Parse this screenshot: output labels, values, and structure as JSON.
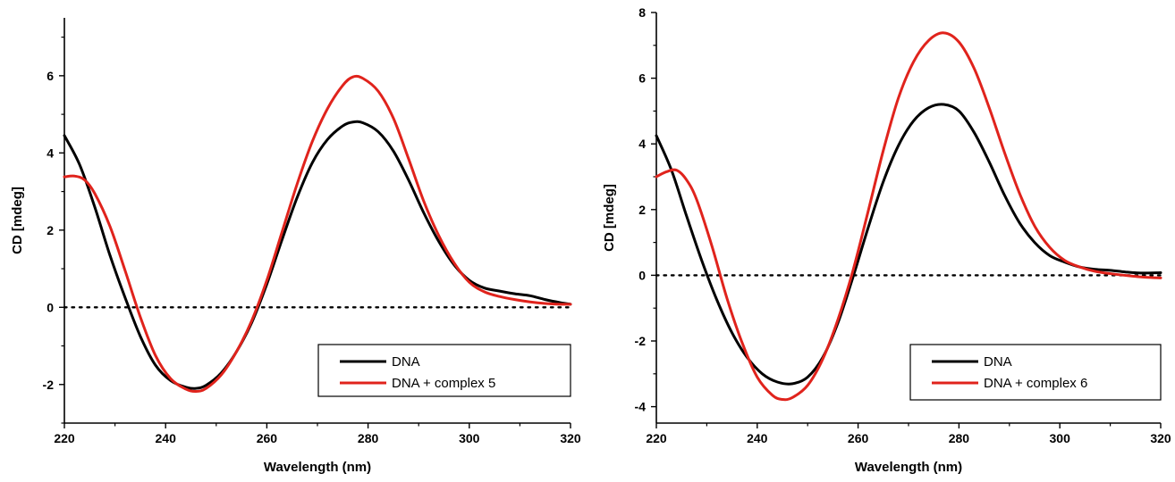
{
  "chart_data": [
    {
      "type": "line",
      "xlabel": "Wavelength (nm)",
      "ylabel": "CD [mdeg]",
      "xlim": [
        220,
        320
      ],
      "ylim": [
        -3.0,
        7.5
      ],
      "xticks": [
        220,
        240,
        260,
        280,
        300,
        320
      ],
      "xtick_labels": [
        "220",
        "240",
        "260",
        "280",
        "300",
        "320"
      ],
      "yticks": [
        -2,
        0,
        2,
        4,
        6
      ],
      "ytick_labels": [
        "-2",
        "0",
        "2",
        "4",
        "6"
      ],
      "minor_ticks": true,
      "grid": false,
      "legend_position": "bottom-right",
      "reference_line": {
        "y": 0,
        "style": "dotted"
      },
      "series": [
        {
          "name": "DNA",
          "color": "#000000",
          "x": [
            220,
            223,
            226,
            229,
            232,
            235,
            238,
            241,
            244,
            246,
            248,
            251,
            254,
            257,
            260,
            263,
            266,
            269,
            272,
            275,
            277,
            279,
            282,
            285,
            288,
            291,
            294,
            297,
            300,
            303,
            306,
            309,
            312,
            315,
            318,
            320
          ],
          "y": [
            4.45,
            3.7,
            2.6,
            1.35,
            0.25,
            -0.75,
            -1.5,
            -1.9,
            -2.07,
            -2.1,
            -2.02,
            -1.7,
            -1.15,
            -0.4,
            0.6,
            1.75,
            2.85,
            3.75,
            4.35,
            4.7,
            4.8,
            4.78,
            4.55,
            4.05,
            3.3,
            2.45,
            1.7,
            1.1,
            0.7,
            0.5,
            0.42,
            0.35,
            0.3,
            0.2,
            0.12,
            0.08
          ]
        },
        {
          "name": "DNA + complex 5",
          "color": "#e0231c",
          "x": [
            220,
            222,
            224,
            226,
            229,
            232,
            235,
            238,
            241,
            244,
            246,
            248,
            251,
            254,
            257,
            260,
            263,
            266,
            269,
            272,
            275,
            277,
            279,
            282,
            285,
            288,
            291,
            294,
            297,
            300,
            303,
            306,
            309,
            312,
            315,
            318,
            320
          ],
          "y": [
            3.38,
            3.4,
            3.3,
            2.95,
            2.1,
            0.95,
            -0.25,
            -1.25,
            -1.85,
            -2.12,
            -2.18,
            -2.1,
            -1.75,
            -1.15,
            -0.35,
            0.7,
            1.95,
            3.2,
            4.3,
            5.15,
            5.75,
            5.97,
            5.93,
            5.6,
            4.9,
            3.85,
            2.75,
            1.85,
            1.15,
            0.65,
            0.4,
            0.28,
            0.2,
            0.14,
            0.1,
            0.08,
            0.08
          ]
        }
      ]
    },
    {
      "type": "line",
      "xlabel": "Wavelength (nm)",
      "ylabel": "CD [mdeg]",
      "xlim": [
        220,
        320
      ],
      "ylim": [
        -4.5,
        8.0
      ],
      "xticks": [
        220,
        240,
        260,
        280,
        300,
        320
      ],
      "xtick_labels": [
        "220",
        "240",
        "260",
        "280",
        "300",
        "320"
      ],
      "yticks": [
        -4,
        -2,
        0,
        2,
        4,
        6,
        8
      ],
      "ytick_labels": [
        "-4",
        "-2",
        "0",
        "2",
        "4",
        "6",
        "8"
      ],
      "minor_ticks": true,
      "grid": false,
      "legend_position": "bottom-right",
      "reference_line": {
        "y": 0,
        "style": "dotted"
      },
      "series": [
        {
          "name": "DNA",
          "color": "#000000",
          "x": [
            220,
            223,
            226,
            229,
            232,
            235,
            238,
            241,
            244,
            247,
            250,
            253,
            256,
            259,
            262,
            265,
            268,
            271,
            274,
            277,
            280,
            283,
            286,
            289,
            292,
            295,
            298,
            301,
            304,
            307,
            310,
            313,
            316,
            320
          ],
          "y": [
            4.25,
            3.2,
            1.8,
            0.45,
            -0.75,
            -1.75,
            -2.5,
            -3.0,
            -3.25,
            -3.3,
            -3.1,
            -2.5,
            -1.45,
            -0.05,
            1.45,
            2.85,
            3.95,
            4.7,
            5.1,
            5.2,
            5.0,
            4.35,
            3.45,
            2.45,
            1.6,
            1.0,
            0.6,
            0.4,
            0.25,
            0.18,
            0.15,
            0.1,
            0.07,
            0.08
          ]
        },
        {
          "name": "DNA + complex 6",
          "color": "#e0231c",
          "x": [
            220,
            222,
            224,
            226,
            228,
            231,
            234,
            237,
            240,
            243,
            245,
            247,
            250,
            253,
            256,
            259,
            262,
            265,
            268,
            271,
            274,
            277,
            280,
            283,
            286,
            289,
            292,
            295,
            298,
            301,
            304,
            307,
            310,
            314,
            317,
            320
          ],
          "y": [
            3.0,
            3.15,
            3.2,
            2.9,
            2.3,
            0.9,
            -0.7,
            -2.05,
            -3.1,
            -3.65,
            -3.78,
            -3.72,
            -3.35,
            -2.55,
            -1.35,
            0.15,
            1.95,
            3.8,
            5.4,
            6.5,
            7.15,
            7.38,
            7.1,
            6.3,
            5.1,
            3.75,
            2.5,
            1.5,
            0.85,
            0.45,
            0.25,
            0.12,
            0.05,
            -0.02,
            -0.06,
            -0.08
          ]
        }
      ]
    }
  ]
}
